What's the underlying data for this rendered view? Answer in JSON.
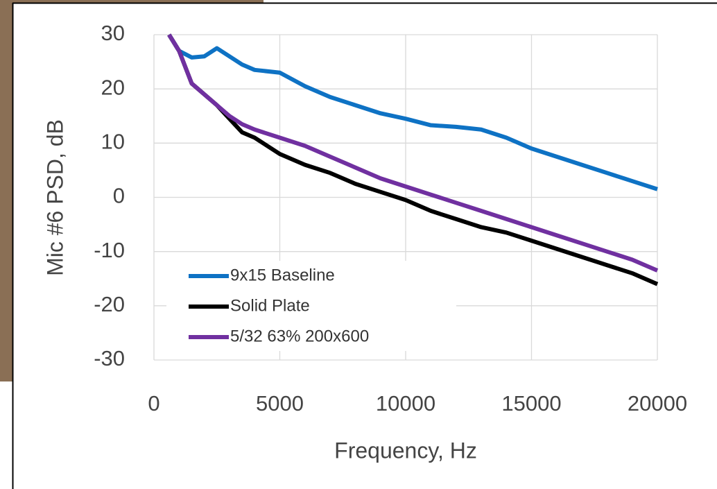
{
  "chart_data": {
    "type": "line",
    "x_label": "Frequency, Hz",
    "y_label": "Mic #6 PSD, dB",
    "xlim": [
      0,
      20000
    ],
    "xticks": [
      0,
      5000,
      10000,
      15000,
      20000
    ],
    "ylim": [
      -30,
      30
    ],
    "yticks": [
      -30,
      -20,
      -10,
      0,
      10,
      20,
      30
    ],
    "grid": true,
    "legend": "lower left",
    "x": [
      600,
      1000,
      1500,
      2000,
      2500,
      3000,
      3500,
      4000,
      5000,
      6000,
      7000,
      8000,
      9000,
      10000,
      11000,
      12000,
      13000,
      14000,
      15000,
      16000,
      17000,
      18000,
      19000,
      20000
    ],
    "series": [
      {
        "name": "9x15 Baseline",
        "color": "#0e72c4",
        "values": [
          30,
          27,
          25.8,
          26,
          27.5,
          26,
          24.5,
          23.5,
          23,
          20.5,
          18.5,
          17,
          15.5,
          14.5,
          13.3,
          13,
          12.5,
          11,
          9,
          7.5,
          6,
          4.5,
          3,
          1.5
        ]
      },
      {
        "name": "Solid Plate",
        "color": "#000000",
        "values": [
          30,
          27,
          21,
          19,
          17,
          14.5,
          12,
          11,
          8,
          6,
          4.5,
          2.5,
          1,
          -0.5,
          -2.5,
          -4,
          -5.5,
          -6.5,
          -8,
          -9.5,
          -11,
          -12.5,
          -14,
          -16
        ]
      },
      {
        "name": "5/32 63% 200x600",
        "color": "#7030a0",
        "values": [
          30,
          27,
          21,
          19,
          17,
          15,
          13.5,
          12.5,
          11,
          9.5,
          7.5,
          5.5,
          3.5,
          2,
          0.5,
          -1,
          -2.5,
          -4,
          -5.5,
          -7,
          -8.5,
          -10,
          -11.5,
          -13.5
        ]
      }
    ]
  }
}
